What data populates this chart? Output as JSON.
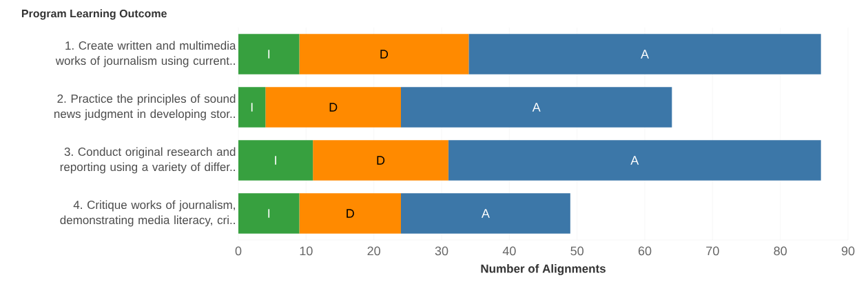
{
  "chart_data": {
    "type": "bar",
    "orientation": "horizontal",
    "stacked": true,
    "ylabel": "Program Learning Outcome",
    "xlabel": "Number of Alignments",
    "categories": [
      "1. Create written and multimedia works of journalism using current..",
      "2. Practice the principles of sound news judgment in developing stor..",
      "3. Conduct original research and reporting using a variety of differ..",
      "4. Critique works of journalism, demonstrating media literacy, cri.."
    ],
    "series": [
      {
        "name": "I",
        "color": "#37a03f",
        "values": [
          9,
          4,
          11,
          9
        ]
      },
      {
        "name": "D",
        "color": "#ff8a00",
        "values": [
          25,
          20,
          20,
          15
        ]
      },
      {
        "name": "A",
        "color": "#3c77a8",
        "values": [
          52,
          40,
          55,
          25
        ]
      }
    ],
    "xlim": [
      0,
      90
    ],
    "xticks": [
      0,
      10,
      20,
      30,
      40,
      50,
      60,
      70,
      80,
      90
    ],
    "grid": "x"
  }
}
